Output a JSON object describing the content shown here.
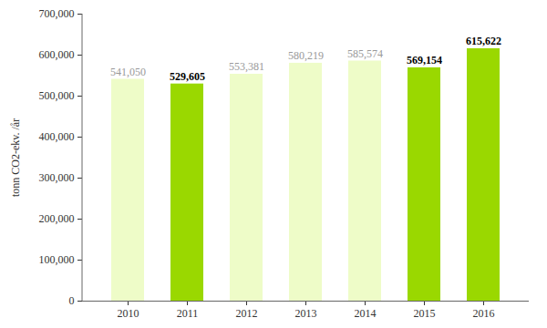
{
  "chart_data": {
    "type": "bar",
    "y_label": "tonn CO2-ekv. /år",
    "categories": [
      "2010",
      "2011",
      "2012",
      "2013",
      "2014",
      "2015",
      "2016"
    ],
    "values": [
      541050,
      529605,
      553381,
      580219,
      585574,
      569154,
      615622
    ],
    "value_labels": [
      "541,050",
      "529,605",
      "553,381",
      "580,219",
      "585,574",
      "569,154",
      "615,622"
    ],
    "colors": [
      "#eefcc8",
      "#9ad800",
      "#eefcc8",
      "#eefcc8",
      "#eefcc8",
      "#9ad800",
      "#9ad800"
    ],
    "ylim": [
      0,
      700000
    ],
    "yticks": [
      0,
      {
        "value": 100000,
        "label": "100,000"
      },
      {
        "value": 200000,
        "label": "200,000"
      },
      {
        "value": 300000,
        "label": "300,000"
      },
      {
        "value": 400000,
        "label": "400,000"
      },
      {
        "value": 500000,
        "label": "500,000"
      },
      {
        "value": 600000,
        "label": "600,000"
      },
      {
        "value": 700000,
        "label": "700,000"
      }
    ],
    "grid": false,
    "data_labels": true
  }
}
